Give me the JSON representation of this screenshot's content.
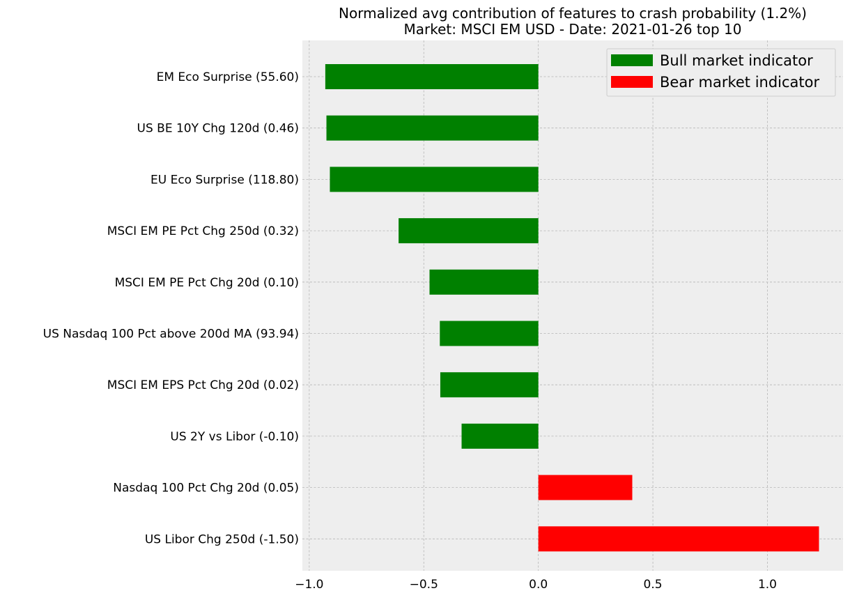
{
  "chart_data": {
    "type": "bar",
    "orientation": "horizontal",
    "title": "Normalized avg contribution of features to crash probability (1.2%)",
    "subtitle": "Market: MSCI EM USD - Date: 2021-01-26  top 10",
    "categories": [
      "EM Eco Surprise (55.60)",
      "US BE 10Y Chg 120d (0.46)",
      "EU Eco Surprise (118.80)",
      "MSCI EM PE Pct Chg 250d (0.32)",
      "MSCI EM PE Pct Chg 20d (0.10)",
      "US Nasdaq 100 Pct above 200d MA (93.94)",
      "MSCI EM EPS Pct Chg 20d (0.02)",
      "US 2Y vs Libor (-0.10)",
      "Nasdaq 100 Pct Chg 20d (0.05)",
      "US Libor Chg 250d (-1.50)"
    ],
    "values": [
      -0.93,
      -0.925,
      -0.91,
      -0.61,
      -0.475,
      -0.43,
      -0.428,
      -0.335,
      0.41,
      1.225
    ],
    "xlim": [
      -1.03,
      1.33
    ],
    "xticks": [
      -1.0,
      -0.5,
      0.0,
      0.5,
      1.0
    ],
    "xtick_labels": [
      "−1.0",
      "−0.5",
      "0.0",
      "0.5",
      "1.0"
    ],
    "grid": true,
    "legend": {
      "placement": "top-right",
      "entries": [
        {
          "label": "Bull market indicator",
          "color": "#008000"
        },
        {
          "label": "Bear market indicator",
          "color": "#ff0000"
        }
      ]
    },
    "colors": {
      "negative": "#008000",
      "positive": "#ff0000",
      "background": "#eeeeee"
    }
  }
}
